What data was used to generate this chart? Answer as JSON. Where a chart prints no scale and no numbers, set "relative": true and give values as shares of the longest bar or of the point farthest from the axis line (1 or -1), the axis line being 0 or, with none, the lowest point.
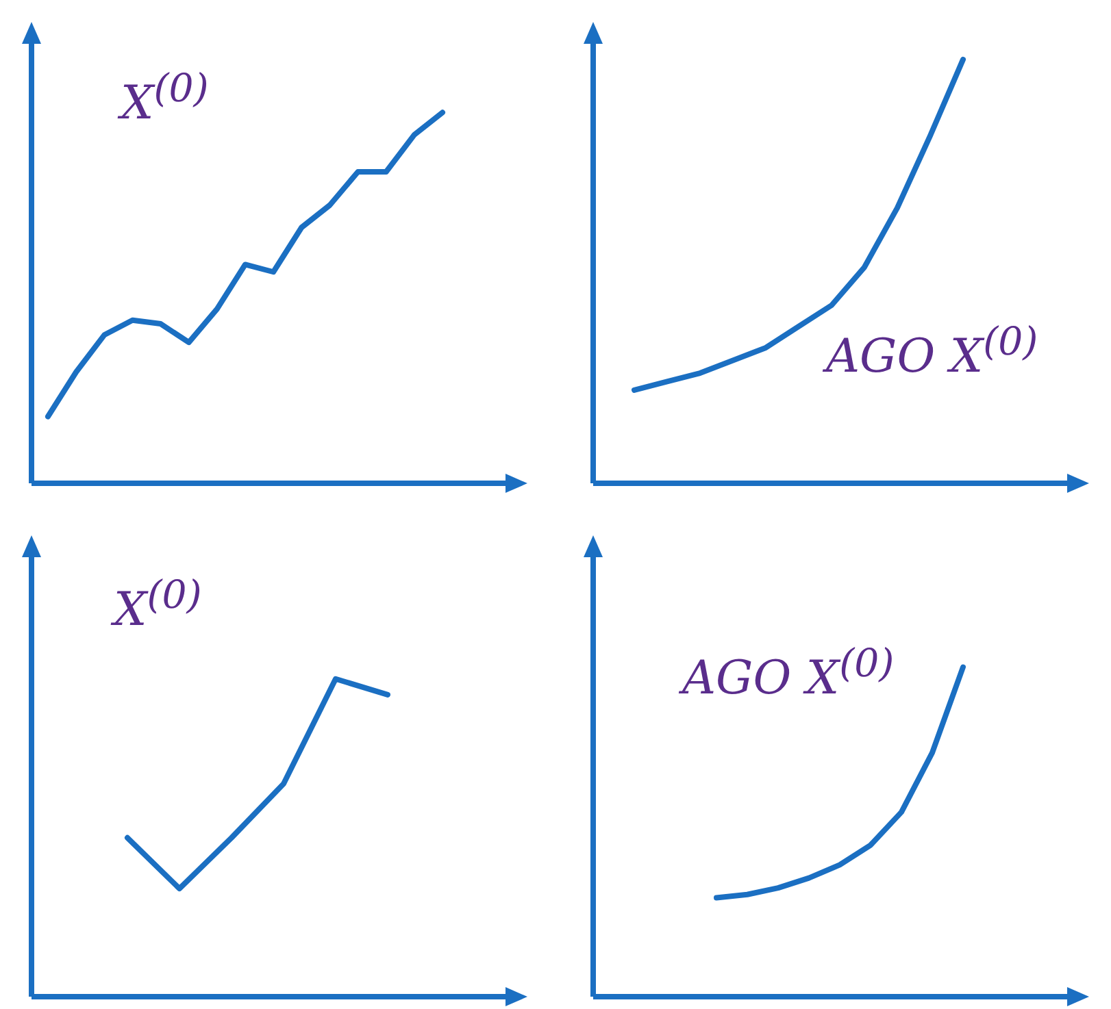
{
  "chart_data": [
    {
      "type": "line",
      "relative": true,
      "categories": [
        null,
        null,
        null,
        null,
        null,
        null,
        null,
        null,
        null,
        null,
        null,
        null,
        null,
        null,
        null
      ],
      "series": [
        {
          "color": "#1b6fc2",
          "values": [
            0.18,
            0.3,
            0.4,
            0.44,
            0.43,
            0.38,
            0.47,
            0.59,
            0.57,
            0.69,
            0.75,
            0.84,
            0.84,
            0.94,
            1
          ]
        }
      ],
      "annotations": [
        "X$^{(0)}$"
      ]
    },
    {
      "type": "line",
      "relative": true,
      "categories": [
        null,
        null,
        null,
        null,
        null,
        null,
        null,
        null,
        null,
        null,
        null
      ],
      "series": [
        {
          "color": "#1b6fc2",
          "values": [
            0.22,
            0.24,
            0.26,
            0.29,
            0.32,
            0.37,
            0.42,
            0.51,
            0.65,
            0.82,
            1
          ]
        }
      ],
      "annotations": [
        "AGO X$^{(0)}$"
      ]
    },
    {
      "type": "line",
      "relative": true,
      "categories": [
        null,
        null,
        null,
        null,
        null,
        null
      ],
      "series": [
        {
          "color": "#1b6fc2",
          "values": [
            0.5,
            0.34,
            0.5,
            0.67,
            1,
            0.95
          ]
        }
      ],
      "annotations": [
        "X$^{(0)}$"
      ]
    },
    {
      "type": "line",
      "relative": true,
      "categories": [
        null,
        null,
        null,
        null,
        null,
        null,
        null,
        null,
        null
      ],
      "series": [
        {
          "color": "#1b6fc2",
          "values": [
            0.3,
            0.31,
            0.33,
            0.36,
            0.4,
            0.46,
            0.56,
            0.74,
            1
          ]
        }
      ],
      "annotations": [
        "AGO X$^{(0)}$"
      ]
    }
  ]
}
